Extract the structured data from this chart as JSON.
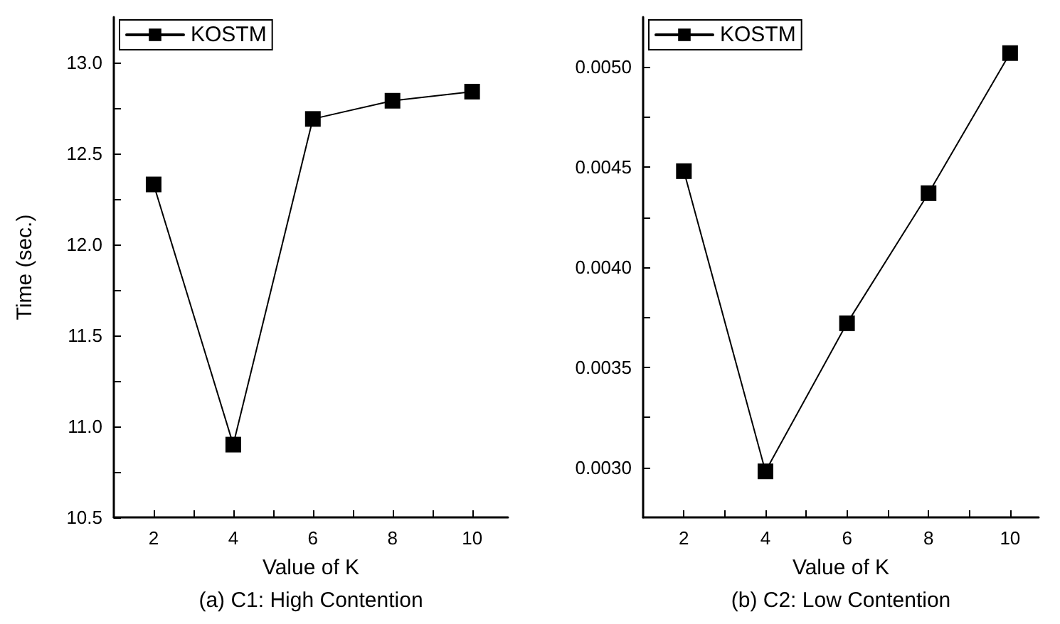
{
  "chart_data": [
    {
      "type": "line",
      "title": "(a) C1: High Contention",
      "xlabel": "Value of K",
      "ylabel": "Time (sec.)",
      "x": [
        2,
        4,
        6,
        8,
        10
      ],
      "series": [
        {
          "name": "KOSTM",
          "color": "#000000",
          "values": [
            12.33,
            10.9,
            12.69,
            12.79,
            12.84
          ]
        }
      ],
      "xlim": [
        1,
        10.9
      ],
      "xticks": [
        2,
        {
          "value": 3,
          "label": null
        },
        4,
        {
          "value": 5,
          "label": null
        },
        6,
        {
          "value": 7,
          "label": null
        },
        8,
        {
          "value": 9,
          "label": null
        },
        10
      ],
      "ylim": [
        10.5,
        13.25
      ],
      "yticks": [
        10.5,
        {
          "value": 10.75,
          "label": null
        },
        {
          "value": 11,
          "label": "11.0"
        },
        {
          "value": 11.25,
          "label": null
        },
        11.5,
        {
          "value": 11.75,
          "label": null
        },
        {
          "value": 12,
          "label": "12.0"
        },
        {
          "value": 12.25,
          "label": null
        },
        12.5,
        {
          "value": 12.75,
          "label": null
        },
        {
          "value": 13,
          "label": "13.0"
        }
      ],
      "grid": false,
      "legend": "top left",
      "marker": "square",
      "line_style": "solid"
    },
    {
      "type": "line",
      "title": "(b) C2: Low Contention",
      "xlabel": "Value of K",
      "x": [
        2,
        4,
        6,
        8,
        10
      ],
      "series": [
        {
          "name": "KOSTM",
          "color": "#000000",
          "values": [
            0.00448,
            0.00298,
            0.00372,
            0.00437,
            0.00507
          ]
        }
      ],
      "xlim": [
        1,
        10.7
      ],
      "xticks": [
        2,
        {
          "value": 3,
          "label": null
        },
        4,
        {
          "value": 5,
          "label": null
        },
        6,
        {
          "value": 7,
          "label": null
        },
        8,
        {
          "value": 9,
          "label": null
        },
        10
      ],
      "ylim": [
        0.00275,
        0.00525
      ],
      "yticks": [
        {
          "value": 0.003,
          "label": "0.0030"
        },
        {
          "value": 0.00325,
          "label": null
        },
        0.0035,
        {
          "value": 0.00375,
          "label": null
        },
        {
          "value": 0.004,
          "label": "0.0040"
        },
        {
          "value": 0.00425,
          "label": null
        },
        0.0045,
        {
          "value": 0.00475,
          "label": null
        },
        {
          "value": 0.005,
          "label": "0.0050"
        }
      ],
      "grid": false,
      "legend": "top left",
      "marker": "square",
      "line_style": "solid"
    }
  ]
}
